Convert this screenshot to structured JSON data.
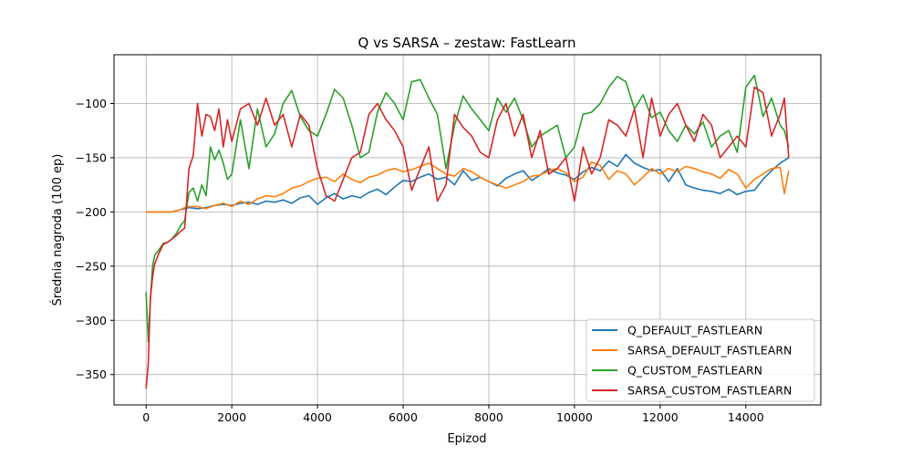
{
  "chart_data": {
    "type": "line",
    "title": "Q vs SARSA – zestaw: FastLearn",
    "xlabel": "Epizod",
    "ylabel": "Średnia nagroda (100 ep)",
    "xlim": [
      -750,
      15750
    ],
    "ylim": [
      -378,
      -55
    ],
    "xticks": [
      0,
      2000,
      4000,
      6000,
      8000,
      10000,
      12000,
      14000
    ],
    "yticks": [
      -350,
      -300,
      -250,
      -200,
      -150,
      -100
    ],
    "grid": true,
    "legend_position": "lower-right",
    "series": [
      {
        "name": "Q_DEFAULT_FASTLEARN",
        "color": "#1f77b4",
        "x": [
          0,
          100,
          200,
          300,
          400,
          500,
          600,
          700,
          800,
          900,
          1000,
          1200,
          1400,
          1600,
          1800,
          2000,
          2200,
          2400,
          2600,
          2800,
          3000,
          3200,
          3400,
          3600,
          3800,
          4000,
          4200,
          4400,
          4600,
          4800,
          5000,
          5200,
          5400,
          5600,
          5800,
          6000,
          6200,
          6400,
          6600,
          6800,
          7000,
          7200,
          7400,
          7600,
          7800,
          8000,
          8200,
          8400,
          8600,
          8800,
          9000,
          9200,
          9400,
          9600,
          9800,
          10000,
          10200,
          10400,
          10600,
          10800,
          11000,
          11200,
          11400,
          11600,
          11800,
          12000,
          12200,
          12400,
          12600,
          12800,
          13000,
          13200,
          13400,
          13600,
          13800,
          14000,
          14200,
          14400,
          14600,
          14800,
          15000
        ],
        "y": [
          -200,
          -200,
          -200,
          -200,
          -200,
          -200,
          -200,
          -199,
          -198,
          -197,
          -196,
          -197,
          -196,
          -194,
          -193,
          -194,
          -192,
          -191,
          -193,
          -190,
          -191,
          -189,
          -192,
          -187,
          -185,
          -193,
          -187,
          -183,
          -188,
          -185,
          -187,
          -182,
          -179,
          -184,
          -177,
          -171,
          -172,
          -168,
          -165,
          -170,
          -168,
          -175,
          -162,
          -171,
          -168,
          -172,
          -176,
          -169,
          -165,
          -162,
          -171,
          -166,
          -160,
          -164,
          -166,
          -170,
          -163,
          -159,
          -162,
          -153,
          -158,
          -147,
          -155,
          -159,
          -162,
          -161,
          -172,
          -160,
          -175,
          -178,
          -180,
          -181,
          -183,
          -179,
          -184,
          -181,
          -180,
          -170,
          -162,
          -155,
          -150
        ]
      },
      {
        "name": "SARSA_DEFAULT_FASTLEARN",
        "color": "#ff7f0e",
        "x": [
          0,
          100,
          200,
          300,
          400,
          500,
          600,
          700,
          800,
          900,
          1000,
          1200,
          1400,
          1600,
          1800,
          2000,
          2200,
          2400,
          2600,
          2800,
          3000,
          3200,
          3400,
          3600,
          3800,
          4000,
          4200,
          4400,
          4600,
          4800,
          5000,
          5200,
          5400,
          5600,
          5800,
          6000,
          6200,
          6400,
          6600,
          6800,
          7000,
          7200,
          7400,
          7600,
          7800,
          8000,
          8200,
          8400,
          8600,
          8800,
          9000,
          9200,
          9400,
          9600,
          9800,
          10000,
          10200,
          10400,
          10600,
          10800,
          11000,
          11200,
          11400,
          11600,
          11800,
          12000,
          12200,
          12400,
          12600,
          12800,
          13000,
          13200,
          13400,
          13600,
          13800,
          14000,
          14200,
          14400,
          14600,
          14800,
          14900,
          15000
        ],
        "y": [
          -200,
          -200,
          -200,
          -200,
          -200,
          -200,
          -200,
          -199,
          -198,
          -196,
          -195,
          -195,
          -197,
          -194,
          -192,
          -195,
          -190,
          -193,
          -188,
          -185,
          -186,
          -183,
          -178,
          -176,
          -172,
          -169,
          -168,
          -172,
          -165,
          -170,
          -173,
          -168,
          -166,
          -162,
          -160,
          -163,
          -161,
          -158,
          -155,
          -160,
          -165,
          -167,
          -160,
          -163,
          -168,
          -172,
          -175,
          -178,
          -175,
          -172,
          -167,
          -166,
          -162,
          -160,
          -164,
          -172,
          -168,
          -154,
          -157,
          -170,
          -162,
          -165,
          -175,
          -168,
          -160,
          -165,
          -160,
          -163,
          -158,
          -160,
          -163,
          -165,
          -169,
          -161,
          -165,
          -178,
          -170,
          -165,
          -160,
          -159,
          -183,
          -162
        ]
      },
      {
        "name": "Q_CUSTOM_FASTLEARN",
        "color": "#2ca02c",
        "x": [
          0,
          50,
          100,
          150,
          200,
          300,
          400,
          500,
          600,
          700,
          800,
          900,
          1000,
          1100,
          1200,
          1300,
          1400,
          1500,
          1600,
          1700,
          1800,
          1900,
          2000,
          2200,
          2400,
          2600,
          2800,
          3000,
          3200,
          3400,
          3600,
          3800,
          4000,
          4200,
          4400,
          4600,
          4800,
          5000,
          5200,
          5400,
          5600,
          5800,
          6000,
          6200,
          6400,
          6600,
          6800,
          7000,
          7200,
          7400,
          7600,
          7800,
          8000,
          8200,
          8400,
          8600,
          8800,
          9000,
          9200,
          9400,
          9600,
          9800,
          10000,
          10200,
          10400,
          10600,
          10800,
          11000,
          11200,
          11400,
          11600,
          11800,
          12000,
          12200,
          12400,
          12600,
          12800,
          13000,
          13200,
          13400,
          13600,
          13800,
          14000,
          14200,
          14400,
          14600,
          14800,
          14900,
          15000
        ],
        "y": [
          -274,
          -320,
          -280,
          -250,
          -240,
          -235,
          -229,
          -228,
          -225,
          -220,
          -213,
          -208,
          -182,
          -178,
          -190,
          -175,
          -185,
          -140,
          -152,
          -143,
          -155,
          -170,
          -165,
          -115,
          -160,
          -105,
          -140,
          -128,
          -100,
          -88,
          -112,
          -125,
          -130,
          -110,
          -87,
          -95,
          -120,
          -150,
          -145,
          -108,
          -90,
          -100,
          -115,
          -80,
          -78,
          -95,
          -110,
          -160,
          -120,
          -93,
          -105,
          -115,
          -125,
          -95,
          -108,
          -95,
          -115,
          -140,
          -130,
          -125,
          -120,
          -150,
          -140,
          -110,
          -108,
          -100,
          -85,
          -75,
          -80,
          -105,
          -92,
          -113,
          -108,
          -125,
          -135,
          -120,
          -128,
          -117,
          -140,
          -130,
          -125,
          -145,
          -85,
          -74,
          -112,
          -95,
          -120,
          -125,
          -140
        ]
      },
      {
        "name": "SARSA_CUSTOM_FASTLEARN",
        "color": "#d62728",
        "x": [
          0,
          50,
          100,
          150,
          200,
          300,
          400,
          500,
          600,
          700,
          800,
          900,
          1000,
          1100,
          1200,
          1300,
          1400,
          1500,
          1600,
          1700,
          1800,
          1900,
          2000,
          2200,
          2400,
          2600,
          2800,
          3000,
          3200,
          3400,
          3600,
          3800,
          4000,
          4200,
          4400,
          4600,
          4800,
          5000,
          5200,
          5400,
          5600,
          5800,
          6000,
          6200,
          6400,
          6600,
          6800,
          7000,
          7200,
          7400,
          7600,
          7800,
          8000,
          8200,
          8400,
          8600,
          8800,
          9000,
          9200,
          9400,
          9600,
          9800,
          10000,
          10200,
          10400,
          10600,
          10800,
          11000,
          11200,
          11400,
          11600,
          11800,
          12000,
          12200,
          12400,
          12600,
          12800,
          13000,
          13200,
          13400,
          13600,
          13800,
          14000,
          14200,
          14400,
          14600,
          14800,
          14900,
          15000
        ],
        "y": [
          -363,
          -340,
          -280,
          -260,
          -248,
          -238,
          -230,
          -228,
          -225,
          -222,
          -218,
          -215,
          -160,
          -148,
          -100,
          -130,
          -110,
          -112,
          -125,
          -105,
          -140,
          -115,
          -135,
          -105,
          -100,
          -120,
          -95,
          -120,
          -110,
          -140,
          -110,
          -120,
          -160,
          -185,
          -190,
          -170,
          -150,
          -145,
          -110,
          -100,
          -115,
          -125,
          -140,
          -180,
          -160,
          -140,
          -190,
          -175,
          -110,
          -122,
          -130,
          -145,
          -150,
          -115,
          -100,
          -130,
          -110,
          -150,
          -125,
          -165,
          -160,
          -150,
          -190,
          -140,
          -165,
          -150,
          -115,
          -120,
          -130,
          -105,
          -150,
          -95,
          -130,
          -110,
          -100,
          -120,
          -135,
          -110,
          -120,
          -150,
          -140,
          -130,
          -140,
          -85,
          -90,
          -130,
          -110,
          -95,
          -150
        ]
      }
    ]
  }
}
